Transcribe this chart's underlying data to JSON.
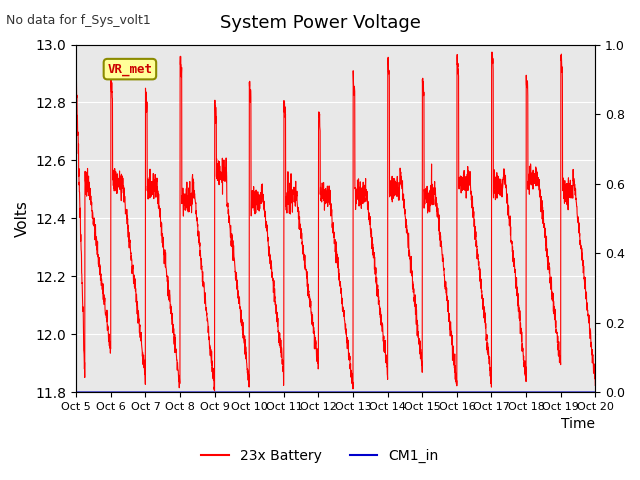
{
  "title": "System Power Voltage",
  "top_left_text": "No data for f_Sys_volt1",
  "ylabel_left": "Volts",
  "xlabel": "Time",
  "ylim_left": [
    11.8,
    13.0
  ],
  "ylim_right": [
    0.0,
    1.0
  ],
  "yticks_left": [
    11.8,
    12.0,
    12.2,
    12.4,
    12.6,
    12.8,
    13.0
  ],
  "yticks_right": [
    0.0,
    0.2,
    0.4,
    0.6,
    0.8,
    1.0
  ],
  "x_tick_labels": [
    "Oct 5",
    "Oct 6",
    "Oct 7",
    "Oct 8",
    "Oct 9",
    "Oct 10",
    "Oct 11",
    "Oct 12",
    "Oct 13",
    "Oct 14",
    "Oct 15",
    "Oct 16",
    "Oct 17",
    "Oct 18",
    "Oct 19",
    "Oct 20"
  ],
  "battery_color": "#ff0000",
  "cm1_color": "#0000cc",
  "background_color": "#e8e8e8",
  "annotation_text": "VR_met",
  "annotation_bg": "#ffff99",
  "annotation_border": "#8b8b00",
  "legend_battery": "23x Battery",
  "legend_cm1": "CM1_in",
  "num_cycles": 15,
  "seed": 42
}
